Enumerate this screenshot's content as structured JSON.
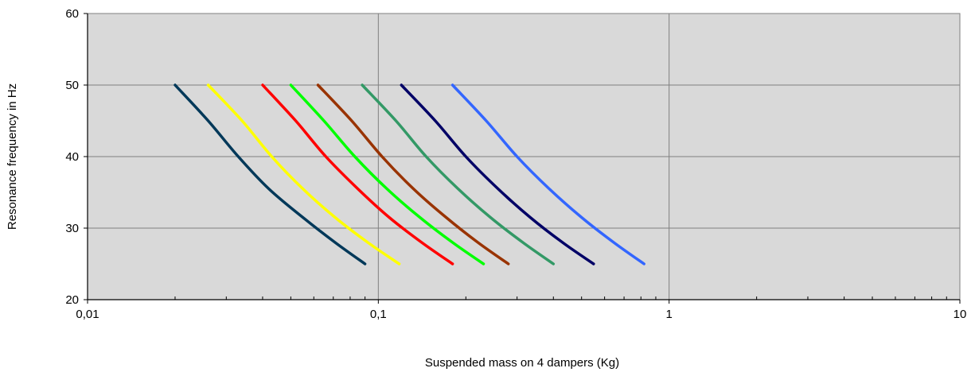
{
  "chart_data": {
    "type": "line",
    "title": "",
    "xlabel": "Suspended mass on 4 dampers (Kg)",
    "ylabel": "Resonance frequency in Hz",
    "xscale": "log",
    "xlim": [
      0.01,
      10
    ],
    "ylim": [
      20,
      60
    ],
    "x_tick_values": [
      0.01,
      0.1,
      1,
      10
    ],
    "x_tick_labels": [
      "0,01",
      "0,1",
      "1",
      "10"
    ],
    "y_ticks": [
      20,
      30,
      40,
      50,
      60
    ],
    "grid": "major",
    "legend": "none",
    "plot_background": "#d9d9d9",
    "series": [
      {
        "color": "#003859",
        "x": [
          0.02,
          0.026,
          0.033,
          0.042,
          0.055,
          0.071,
          0.09
        ],
        "y": [
          50,
          45,
          40,
          35.5,
          31.5,
          28,
          25
        ]
      },
      {
        "color": "#ffff00",
        "x": [
          0.026,
          0.034,
          0.043,
          0.055,
          0.071,
          0.092,
          0.118
        ],
        "y": [
          50,
          45,
          40,
          35.5,
          31.5,
          28,
          25
        ]
      },
      {
        "color": "#ff0000",
        "x": [
          0.04,
          0.052,
          0.066,
          0.085,
          0.109,
          0.141,
          0.18
        ],
        "y": [
          50,
          45,
          40,
          35.5,
          31.5,
          28,
          25
        ]
      },
      {
        "color": "#00ff00",
        "x": [
          0.05,
          0.065,
          0.083,
          0.107,
          0.139,
          0.18,
          0.23
        ],
        "y": [
          50,
          45,
          40,
          35.5,
          31.5,
          28,
          25
        ]
      },
      {
        "color": "#993300",
        "x": [
          0.062,
          0.081,
          0.103,
          0.132,
          0.171,
          0.22,
          0.28
        ],
        "y": [
          50,
          45,
          40,
          35.5,
          31.5,
          28,
          25
        ]
      },
      {
        "color": "#339966",
        "x": [
          0.088,
          0.115,
          0.146,
          0.188,
          0.243,
          0.314,
          0.4
        ],
        "y": [
          50,
          45,
          40,
          35.5,
          31.5,
          28,
          25
        ]
      },
      {
        "color": "#000066",
        "x": [
          0.12,
          0.157,
          0.2,
          0.258,
          0.333,
          0.43,
          0.55
        ],
        "y": [
          50,
          45,
          40,
          35.5,
          31.5,
          28,
          25
        ]
      },
      {
        "color": "#3366ff",
        "x": [
          0.18,
          0.235,
          0.3,
          0.387,
          0.5,
          0.645,
          0.82
        ],
        "y": [
          50,
          45,
          40,
          35.5,
          31.5,
          28,
          25
        ]
      }
    ]
  }
}
